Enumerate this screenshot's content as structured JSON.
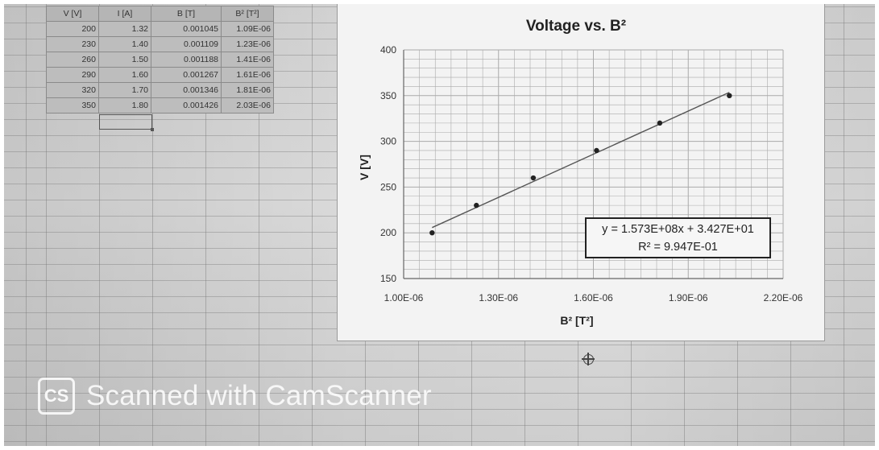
{
  "table": {
    "headers": [
      "V [V]",
      "I [A]",
      "B [T]",
      "B² [T²]"
    ],
    "rows": [
      [
        "200",
        "1.32",
        "0.001045",
        "1.09E-06"
      ],
      [
        "230",
        "1.40",
        "0.001109",
        "1.23E-06"
      ],
      [
        "260",
        "1.50",
        "0.001188",
        "1.41E-06"
      ],
      [
        "290",
        "1.60",
        "0.001267",
        "1.61E-06"
      ],
      [
        "320",
        "1.70",
        "0.001346",
        "1.81E-06"
      ],
      [
        "350",
        "1.80",
        "0.001426",
        "2.03E-06"
      ]
    ]
  },
  "chart_data": {
    "type": "scatter",
    "title": "Voltage vs. B²",
    "xlabel": "B² [T²]",
    "ylabel": "V [V]",
    "xlim": [
      1e-06,
      2.2e-06
    ],
    "ylim": [
      150,
      400
    ],
    "x_ticks": [
      "1.00E-06",
      "1.30E-06",
      "1.60E-06",
      "1.90E-06",
      "2.20E-06"
    ],
    "y_ticks": [
      "150",
      "200",
      "250",
      "300",
      "350",
      "400"
    ],
    "grid": true,
    "series": [
      {
        "x": [
          1.09e-06,
          1.23e-06,
          1.41e-06,
          1.61e-06,
          1.81e-06,
          2.03e-06
        ],
        "y": [
          200,
          230,
          260,
          290,
          320,
          350
        ]
      }
    ],
    "trendline": {
      "type": "linear",
      "slope": 157300000.0,
      "intercept": 34.27,
      "equation": "y = 1.573E+08x + 3.427E+01",
      "r_squared": "R² = 9.947E-01"
    }
  },
  "watermark": {
    "logo": "CS",
    "text": "Scanned with CamScanner"
  },
  "colors": {
    "marker": "#222222",
    "trendline": "#555555",
    "gridline": "#aaaaaa"
  }
}
